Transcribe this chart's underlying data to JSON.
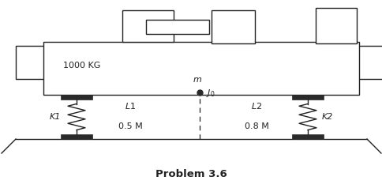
{
  "bg_color": "#ffffff",
  "line_color": "#222222",
  "fill_color": "#ffffff",
  "dark_fill": "#2a2a2a",
  "title": "Problem 3.6",
  "title_fontsize": 9.5,
  "label_1000kg": "1000 KG",
  "label_K1": "K1",
  "label_K2": "K2",
  "label_L1": "L1",
  "label_L1_val": "0.5 M",
  "label_L2": "L2",
  "label_L2_val": "0.8 M",
  "xlim": [
    0,
    485
  ],
  "ylim": [
    0,
    238
  ]
}
